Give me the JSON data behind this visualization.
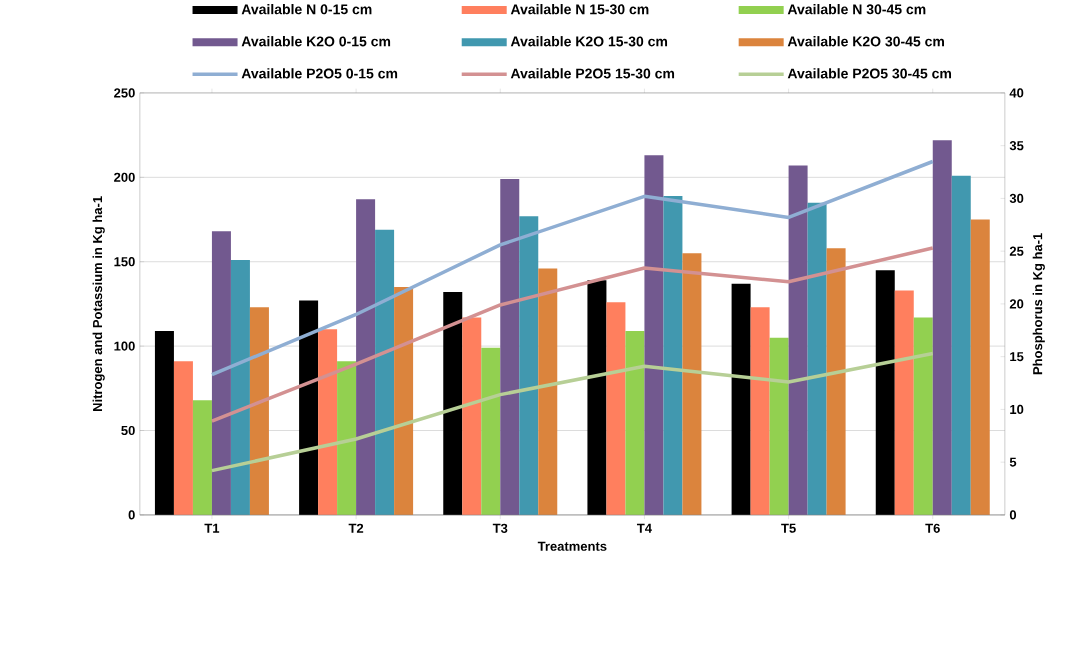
{
  "chart_data": {
    "type": "bar",
    "xlabel": "Treatments",
    "ylabel": "Nitrogen and Potassium in Kg ha-1",
    "y2label": "Phosphorus in Kg ha-1",
    "categories": [
      "T1",
      "T2",
      "T3",
      "T4",
      "T5",
      "T6"
    ],
    "series": [
      {
        "name": "Available N 0-15 cm",
        "color": "#000000",
        "values": [
          109,
          127,
          132,
          139,
          137,
          145
        ]
      },
      {
        "name": "Available N 15-30 cm",
        "color": "#ff7f5e",
        "values": [
          91,
          110,
          117,
          126,
          123,
          133
        ]
      },
      {
        "name": "Available N 30-45 cm",
        "color": "#92d050",
        "values": [
          68,
          91,
          99,
          109,
          105,
          117
        ]
      },
      {
        "name": "Available K2O 0-15 cm",
        "color": "#72598f",
        "values": [
          168,
          187,
          199,
          213,
          207,
          222
        ]
      },
      {
        "name": "Available K2O 15-30 cm",
        "color": "#4198af",
        "values": [
          151,
          169,
          177,
          189,
          185,
          201
        ]
      },
      {
        "name": "Available K2O 30-45 cm",
        "color": "#db843d",
        "values": [
          123,
          135,
          146,
          155,
          158,
          175
        ]
      },
      {
        "name": "Available P2O5 0-15 cm",
        "type": "line",
        "axis": "y2",
        "color": "#8faed3",
        "values": [
          13.3,
          19.0,
          25.6,
          30.2,
          28.2,
          33.5
        ]
      },
      {
        "name": "Available P2O5 15-30 cm",
        "type": "line",
        "axis": "y2",
        "color": "#d39192",
        "values": [
          8.9,
          14.3,
          19.9,
          23.4,
          22.1,
          25.3
        ]
      },
      {
        "name": "Available P2O5 30-45 cm",
        "type": "line",
        "axis": "y2",
        "color": "#b7cf96",
        "values": [
          4.2,
          7.2,
          11.4,
          14.1,
          12.6,
          15.3
        ]
      }
    ],
    "ylim": [
      0,
      250
    ],
    "yticks": [
      0,
      50,
      100,
      150,
      200,
      250
    ],
    "y2lim": [
      0,
      40
    ],
    "y2ticks": [
      0,
      5,
      10,
      15,
      20,
      25,
      30,
      35,
      40
    ],
    "grid": "y",
    "legend": "top"
  }
}
